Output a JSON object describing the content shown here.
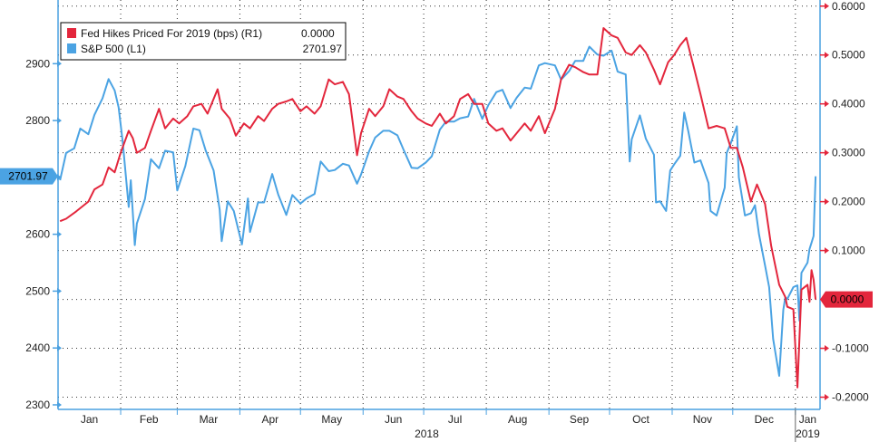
{
  "colors": {
    "sp500": "#4ba3e3",
    "fed": "#e3263c",
    "axis": "#4aa0e0",
    "grid": "#333333"
  },
  "chart_data": {
    "type": "line",
    "title": "",
    "legend_position": "top-left",
    "grid": true,
    "x_axis": {
      "months": [
        "Jan",
        "Feb",
        "Mar",
        "Apr",
        "May",
        "Jun",
        "Jul",
        "Aug",
        "Sep",
        "Oct",
        "Nov",
        "Dec",
        "Jan"
      ],
      "years": [
        "2018",
        "2019"
      ],
      "range": [
        "2018-01-02",
        "2019-01-11"
      ]
    },
    "y_left": {
      "ticks": [
        2300,
        2400,
        2500,
        2600,
        2700,
        2800,
        2900
      ],
      "ylim": [
        2292,
        3012
      ]
    },
    "y_right": {
      "ticks": [
        "0.6000",
        "0.5000",
        "0.4000",
        "0.3000",
        "0.2000",
        "0.1000",
        "0.0000",
        "-0.1000",
        "-0.2000"
      ],
      "ylim": [
        -0.225,
        0.6125
      ]
    },
    "series": [
      {
        "name": "Fed Hikes Priced For 2019 (bps) (R1)",
        "legend_value": "0.0000",
        "last_value_label": "0.0000",
        "axis": "right",
        "points": [
          [
            "2018-01-02",
            0.16
          ],
          [
            "2018-01-05",
            0.165
          ],
          [
            "2018-01-10",
            0.18
          ],
          [
            "2018-01-16",
            0.2
          ],
          [
            "2018-01-19",
            0.225
          ],
          [
            "2018-01-23",
            0.235
          ],
          [
            "2018-01-26",
            0.27
          ],
          [
            "2018-01-29",
            0.26
          ],
          [
            "2018-02-01",
            0.3
          ],
          [
            "2018-02-05",
            0.345
          ],
          [
            "2018-02-07",
            0.33
          ],
          [
            "2018-02-09",
            0.3
          ],
          [
            "2018-02-13",
            0.31
          ],
          [
            "2018-02-16",
            0.345
          ],
          [
            "2018-02-20",
            0.39
          ],
          [
            "2018-02-23",
            0.35
          ],
          [
            "2018-02-27",
            0.37
          ],
          [
            "2018-03-02",
            0.36
          ],
          [
            "2018-03-06",
            0.375
          ],
          [
            "2018-03-09",
            0.395
          ],
          [
            "2018-03-13",
            0.4
          ],
          [
            "2018-03-16",
            0.38
          ],
          [
            "2018-03-21",
            0.43
          ],
          [
            "2018-03-23",
            0.39
          ],
          [
            "2018-03-27",
            0.37
          ],
          [
            "2018-03-30",
            0.335
          ],
          [
            "2018-04-03",
            0.36
          ],
          [
            "2018-04-06",
            0.35
          ],
          [
            "2018-04-10",
            0.375
          ],
          [
            "2018-04-13",
            0.365
          ],
          [
            "2018-04-17",
            0.39
          ],
          [
            "2018-04-20",
            0.4
          ],
          [
            "2018-04-24",
            0.405
          ],
          [
            "2018-04-27",
            0.41
          ],
          [
            "2018-05-01",
            0.385
          ],
          [
            "2018-05-04",
            0.395
          ],
          [
            "2018-05-08",
            0.38
          ],
          [
            "2018-05-11",
            0.395
          ],
          [
            "2018-05-15",
            0.45
          ],
          [
            "2018-05-18",
            0.44
          ],
          [
            "2018-05-22",
            0.445
          ],
          [
            "2018-05-25",
            0.42
          ],
          [
            "2018-05-29",
            0.295
          ],
          [
            "2018-05-31",
            0.34
          ],
          [
            "2018-06-04",
            0.39
          ],
          [
            "2018-06-07",
            0.375
          ],
          [
            "2018-06-11",
            0.395
          ],
          [
            "2018-06-14",
            0.43
          ],
          [
            "2018-06-18",
            0.415
          ],
          [
            "2018-06-21",
            0.41
          ],
          [
            "2018-06-25",
            0.385
          ],
          [
            "2018-06-28",
            0.37
          ],
          [
            "2018-07-02",
            0.36
          ],
          [
            "2018-07-05",
            0.355
          ],
          [
            "2018-07-09",
            0.38
          ],
          [
            "2018-07-12",
            0.36
          ],
          [
            "2018-07-16",
            0.375
          ],
          [
            "2018-07-19",
            0.41
          ],
          [
            "2018-07-23",
            0.42
          ],
          [
            "2018-07-26",
            0.4
          ],
          [
            "2018-07-30",
            0.4
          ],
          [
            "2018-08-02",
            0.36
          ],
          [
            "2018-08-06",
            0.345
          ],
          [
            "2018-08-09",
            0.35
          ],
          [
            "2018-08-13",
            0.325
          ],
          [
            "2018-08-16",
            0.34
          ],
          [
            "2018-08-20",
            0.36
          ],
          [
            "2018-08-23",
            0.345
          ],
          [
            "2018-08-27",
            0.375
          ],
          [
            "2018-08-30",
            0.34
          ],
          [
            "2018-09-04",
            0.39
          ],
          [
            "2018-09-07",
            0.45
          ],
          [
            "2018-09-11",
            0.48
          ],
          [
            "2018-09-14",
            0.475
          ],
          [
            "2018-09-18",
            0.465
          ],
          [
            "2018-09-21",
            0.46
          ],
          [
            "2018-09-25",
            0.46
          ],
          [
            "2018-09-28",
            0.555
          ],
          [
            "2018-10-02",
            0.54
          ],
          [
            "2018-10-05",
            0.535
          ],
          [
            "2018-10-09",
            0.505
          ],
          [
            "2018-10-12",
            0.5
          ],
          [
            "2018-10-16",
            0.52
          ],
          [
            "2018-10-19",
            0.505
          ],
          [
            "2018-10-23",
            0.47
          ],
          [
            "2018-10-26",
            0.44
          ],
          [
            "2018-10-30",
            0.485
          ],
          [
            "2018-11-02",
            0.5
          ],
          [
            "2018-11-05",
            0.52
          ],
          [
            "2018-11-08",
            0.535
          ],
          [
            "2018-11-12",
            0.47
          ],
          [
            "2018-11-15",
            0.42
          ],
          [
            "2018-11-19",
            0.35
          ],
          [
            "2018-11-23",
            0.355
          ],
          [
            "2018-11-27",
            0.35
          ],
          [
            "2018-11-30",
            0.31
          ],
          [
            "2018-12-03",
            0.31
          ],
          [
            "2018-12-06",
            0.27
          ],
          [
            "2018-12-10",
            0.2
          ],
          [
            "2018-12-13",
            0.235
          ],
          [
            "2018-12-17",
            0.195
          ],
          [
            "2018-12-20",
            0.11
          ],
          [
            "2018-12-24",
            0.03
          ],
          [
            "2018-12-27",
            0.005
          ],
          [
            "2018-12-28",
            -0.015
          ],
          [
            "2018-12-31",
            -0.02
          ],
          [
            "2019-01-02",
            -0.18
          ],
          [
            "2019-01-03",
            -0.08
          ],
          [
            "2019-01-04",
            0.02
          ],
          [
            "2019-01-07",
            0.03
          ],
          [
            "2019-01-08",
            -0.005
          ],
          [
            "2019-01-09",
            0.06
          ],
          [
            "2019-01-10",
            0.04
          ],
          [
            "2019-01-11",
            0.0
          ]
        ]
      },
      {
        "name": "S&P 500 (L1)",
        "legend_value": "2701.97",
        "last_value_label": "2701.97",
        "axis": "left",
        "points": [
          [
            "2018-01-02",
            2695
          ],
          [
            "2018-01-05",
            2743
          ],
          [
            "2018-01-09",
            2751
          ],
          [
            "2018-01-12",
            2786
          ],
          [
            "2018-01-16",
            2776
          ],
          [
            "2018-01-19",
            2810
          ],
          [
            "2018-01-23",
            2839
          ],
          [
            "2018-01-26",
            2873
          ],
          [
            "2018-01-29",
            2853
          ],
          [
            "2018-01-31",
            2823
          ],
          [
            "2018-02-02",
            2762
          ],
          [
            "2018-02-05",
            2648
          ],
          [
            "2018-02-06",
            2695
          ],
          [
            "2018-02-08",
            2581
          ],
          [
            "2018-02-09",
            2619
          ],
          [
            "2018-02-13",
            2662
          ],
          [
            "2018-02-16",
            2732
          ],
          [
            "2018-02-20",
            2716
          ],
          [
            "2018-02-23",
            2747
          ],
          [
            "2018-02-27",
            2744
          ],
          [
            "2018-03-01",
            2677
          ],
          [
            "2018-03-05",
            2720
          ],
          [
            "2018-03-09",
            2786
          ],
          [
            "2018-03-12",
            2783
          ],
          [
            "2018-03-15",
            2748
          ],
          [
            "2018-03-19",
            2712
          ],
          [
            "2018-03-22",
            2643
          ],
          [
            "2018-03-23",
            2588
          ],
          [
            "2018-03-26",
            2658
          ],
          [
            "2018-03-29",
            2641
          ],
          [
            "2018-04-02",
            2582
          ],
          [
            "2018-04-05",
            2663
          ],
          [
            "2018-04-06",
            2604
          ],
          [
            "2018-04-10",
            2656
          ],
          [
            "2018-04-13",
            2656
          ],
          [
            "2018-04-17",
            2706
          ],
          [
            "2018-04-20",
            2670
          ],
          [
            "2018-04-24",
            2634
          ],
          [
            "2018-04-27",
            2669
          ],
          [
            "2018-05-01",
            2654
          ],
          [
            "2018-05-04",
            2663
          ],
          [
            "2018-05-08",
            2671
          ],
          [
            "2018-05-11",
            2728
          ],
          [
            "2018-05-15",
            2711
          ],
          [
            "2018-05-18",
            2713
          ],
          [
            "2018-05-22",
            2724
          ],
          [
            "2018-05-25",
            2721
          ],
          [
            "2018-05-29",
            2689
          ],
          [
            "2018-05-31",
            2705
          ],
          [
            "2018-06-04",
            2746
          ],
          [
            "2018-06-07",
            2770
          ],
          [
            "2018-06-11",
            2782
          ],
          [
            "2018-06-14",
            2782
          ],
          [
            "2018-06-18",
            2774
          ],
          [
            "2018-06-21",
            2749
          ],
          [
            "2018-06-25",
            2717
          ],
          [
            "2018-06-28",
            2716
          ],
          [
            "2018-07-02",
            2726
          ],
          [
            "2018-07-05",
            2737
          ],
          [
            "2018-07-09",
            2784
          ],
          [
            "2018-07-12",
            2798
          ],
          [
            "2018-07-16",
            2798
          ],
          [
            "2018-07-19",
            2804
          ],
          [
            "2018-07-23",
            2807
          ],
          [
            "2018-07-26",
            2838
          ],
          [
            "2018-07-30",
            2803
          ],
          [
            "2018-08-02",
            2827
          ],
          [
            "2018-08-06",
            2850
          ],
          [
            "2018-08-09",
            2854
          ],
          [
            "2018-08-13",
            2822
          ],
          [
            "2018-08-16",
            2840
          ],
          [
            "2018-08-20",
            2858
          ],
          [
            "2018-08-23",
            2856
          ],
          [
            "2018-08-27",
            2897
          ],
          [
            "2018-08-30",
            2901
          ],
          [
            "2018-09-04",
            2897
          ],
          [
            "2018-09-07",
            2872
          ],
          [
            "2018-09-11",
            2887
          ],
          [
            "2018-09-14",
            2905
          ],
          [
            "2018-09-18",
            2905
          ],
          [
            "2018-09-21",
            2930
          ],
          [
            "2018-09-25",
            2916
          ],
          [
            "2018-09-28",
            2914
          ],
          [
            "2018-10-02",
            2923
          ],
          [
            "2018-10-05",
            2886
          ],
          [
            "2018-10-09",
            2881
          ],
          [
            "2018-10-11",
            2728
          ],
          [
            "2018-10-12",
            2767
          ],
          [
            "2018-10-16",
            2809
          ],
          [
            "2018-10-19",
            2768
          ],
          [
            "2018-10-23",
            2740
          ],
          [
            "2018-10-24",
            2656
          ],
          [
            "2018-10-26",
            2658
          ],
          [
            "2018-10-29",
            2641
          ],
          [
            "2018-10-31",
            2712
          ],
          [
            "2018-11-02",
            2723
          ],
          [
            "2018-11-05",
            2738
          ],
          [
            "2018-11-07",
            2814
          ],
          [
            "2018-11-09",
            2781
          ],
          [
            "2018-11-12",
            2726
          ],
          [
            "2018-11-15",
            2730
          ],
          [
            "2018-11-19",
            2690
          ],
          [
            "2018-11-20",
            2641
          ],
          [
            "2018-11-23",
            2633
          ],
          [
            "2018-11-27",
            2682
          ],
          [
            "2018-11-28",
            2743
          ],
          [
            "2018-11-30",
            2760
          ],
          [
            "2018-12-03",
            2790
          ],
          [
            "2018-12-04",
            2700
          ],
          [
            "2018-12-07",
            2633
          ],
          [
            "2018-12-10",
            2637
          ],
          [
            "2018-12-12",
            2651
          ],
          [
            "2018-12-14",
            2600
          ],
          [
            "2018-12-17",
            2545
          ],
          [
            "2018-12-19",
            2507
          ],
          [
            "2018-12-21",
            2416
          ],
          [
            "2018-12-24",
            2351
          ],
          [
            "2018-12-26",
            2467
          ],
          [
            "2018-12-27",
            2489
          ],
          [
            "2018-12-28",
            2486
          ],
          [
            "2018-12-31",
            2507
          ],
          [
            "2019-01-02",
            2510
          ],
          [
            "2019-01-03",
            2448
          ],
          [
            "2019-01-04",
            2532
          ],
          [
            "2019-01-07",
            2550
          ],
          [
            "2019-01-08",
            2574
          ],
          [
            "2019-01-09",
            2585
          ],
          [
            "2019-01-10",
            2597
          ],
          [
            "2019-01-11",
            2702
          ]
        ]
      }
    ]
  }
}
